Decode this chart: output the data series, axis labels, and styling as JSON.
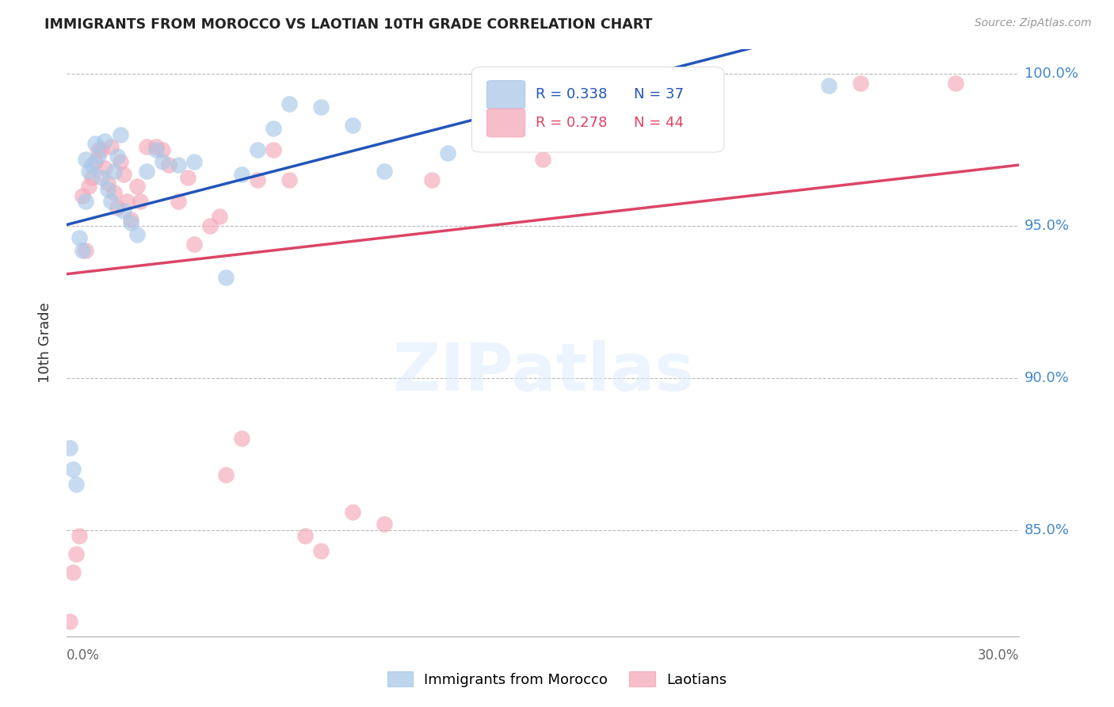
{
  "title": "IMMIGRANTS FROM MOROCCO VS LAOTIAN 10TH GRADE CORRELATION CHART",
  "source": "Source: ZipAtlas.com",
  "ylabel": "10th Grade",
  "xlim": [
    0.0,
    0.3
  ],
  "ylim": [
    0.815,
    1.008
  ],
  "yticks": [
    0.85,
    0.9,
    0.95,
    1.0
  ],
  "ytick_labels": [
    "85.0%",
    "90.0%",
    "95.0%",
    "100.0%"
  ],
  "blue_R": "R = 0.338",
  "blue_N": "N = 37",
  "pink_R": "R = 0.278",
  "pink_N": "N = 44",
  "blue_color": "#a8c8e8",
  "pink_color": "#f4a8b8",
  "blue_line_color": "#2255bb",
  "pink_line_color": "#dd4466",
  "legend_blue_label": "Immigrants from Morocco",
  "legend_pink_label": "Laotians",
  "blue_scatter_x": [
    0.001,
    0.002,
    0.003,
    0.004,
    0.005,
    0.006,
    0.006,
    0.007,
    0.008,
    0.009,
    0.01,
    0.011,
    0.012,
    0.013,
    0.014,
    0.015,
    0.016,
    0.017,
    0.018,
    0.02,
    0.022,
    0.025,
    0.028,
    0.03,
    0.035,
    0.04,
    0.05,
    0.055,
    0.06,
    0.065,
    0.07,
    0.08,
    0.09,
    0.1,
    0.12,
    0.18,
    0.24
  ],
  "blue_scatter_y": [
    0.877,
    0.87,
    0.865,
    0.946,
    0.942,
    0.958,
    0.972,
    0.968,
    0.97,
    0.977,
    0.973,
    0.966,
    0.978,
    0.962,
    0.958,
    0.968,
    0.973,
    0.98,
    0.955,
    0.951,
    0.947,
    0.968,
    0.975,
    0.971,
    0.97,
    0.971,
    0.933,
    0.967,
    0.975,
    0.982,
    0.99,
    0.989,
    0.983,
    0.968,
    0.974,
    0.997,
    0.996
  ],
  "pink_scatter_x": [
    0.001,
    0.002,
    0.003,
    0.004,
    0.005,
    0.006,
    0.007,
    0.008,
    0.009,
    0.01,
    0.011,
    0.012,
    0.013,
    0.014,
    0.015,
    0.016,
    0.017,
    0.018,
    0.019,
    0.02,
    0.022,
    0.023,
    0.025,
    0.028,
    0.03,
    0.032,
    0.035,
    0.038,
    0.04,
    0.045,
    0.048,
    0.05,
    0.055,
    0.06,
    0.065,
    0.07,
    0.075,
    0.08,
    0.09,
    0.1,
    0.115,
    0.15,
    0.25,
    0.28
  ],
  "pink_scatter_y": [
    0.82,
    0.836,
    0.842,
    0.848,
    0.96,
    0.942,
    0.963,
    0.966,
    0.971,
    0.975,
    0.975,
    0.969,
    0.964,
    0.976,
    0.961,
    0.956,
    0.971,
    0.967,
    0.958,
    0.952,
    0.963,
    0.958,
    0.976,
    0.976,
    0.975,
    0.97,
    0.958,
    0.966,
    0.944,
    0.95,
    0.953,
    0.868,
    0.88,
    0.965,
    0.975,
    0.965,
    0.848,
    0.843,
    0.856,
    0.852,
    0.965,
    0.972,
    0.997,
    0.997
  ],
  "watermark_text": "ZIPatlas",
  "background_color": "#ffffff",
  "grid_color": "#bbbbbb"
}
